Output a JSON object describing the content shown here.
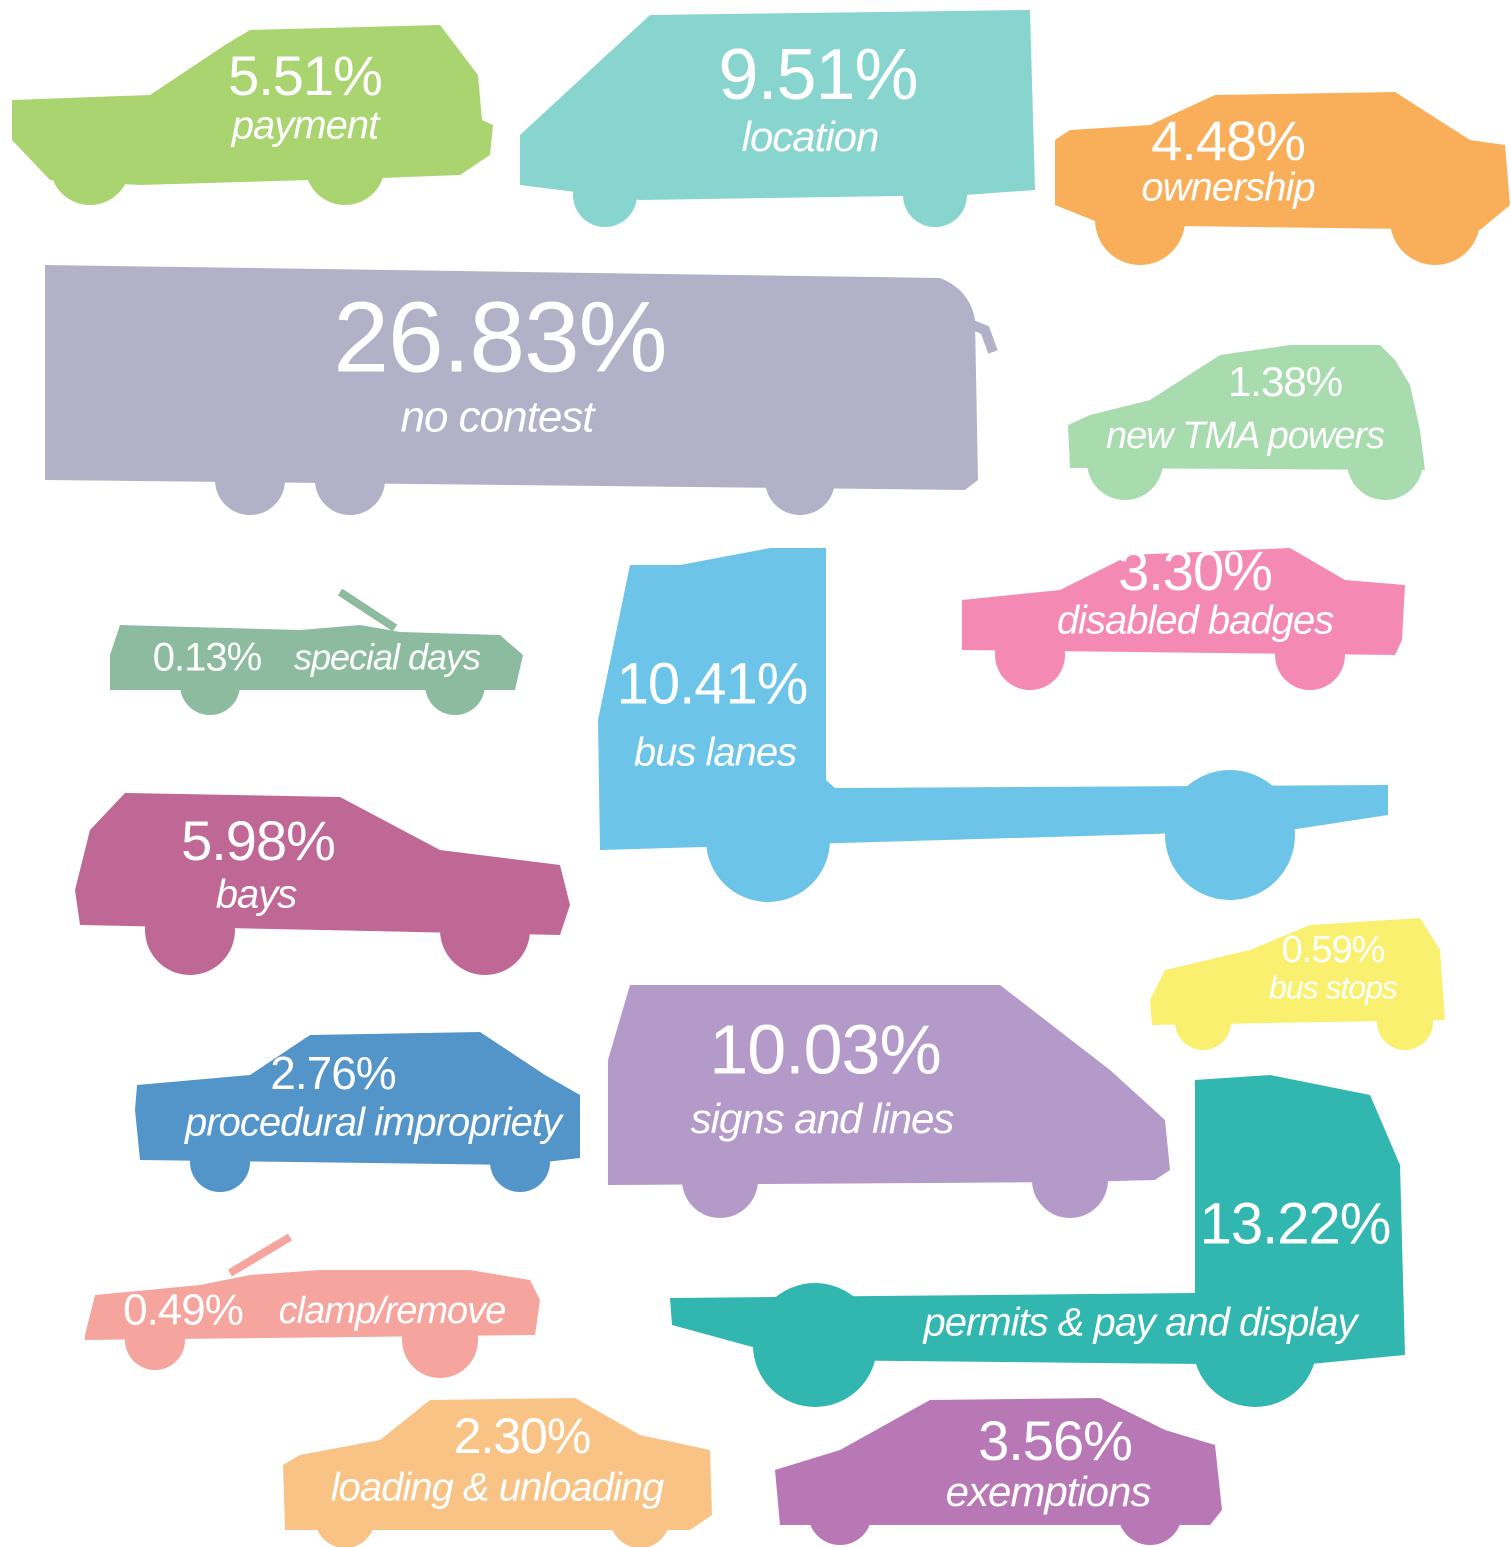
{
  "items": [
    {
      "percent": "5.51%",
      "label": "payment"
    },
    {
      "percent": "9.51%",
      "label": "location"
    },
    {
      "percent": "4.48%",
      "label": "ownership"
    },
    {
      "percent": "26.83%",
      "label": "no contest"
    },
    {
      "percent": "1.38%",
      "label": "new TMA powers"
    },
    {
      "percent": "3.30%",
      "label": "disabled badges"
    },
    {
      "percent": "0.13%",
      "label": "special days"
    },
    {
      "percent": "10.41%",
      "label": "bus lanes"
    },
    {
      "percent": "5.98%",
      "label": "bays"
    },
    {
      "percent": "0.59%",
      "label": "bus stops"
    },
    {
      "percent": "10.03%",
      "label": "signs and lines"
    },
    {
      "percent": "2.76%",
      "label": "procedural impropriety"
    },
    {
      "percent": "13.22%",
      "label": "permits & pay and display"
    },
    {
      "percent": "0.49%",
      "label": "clamp/remove"
    },
    {
      "percent": "2.30%",
      "label": "loading & unloading"
    },
    {
      "percent": "3.56%",
      "label": "exemptions"
    }
  ]
}
